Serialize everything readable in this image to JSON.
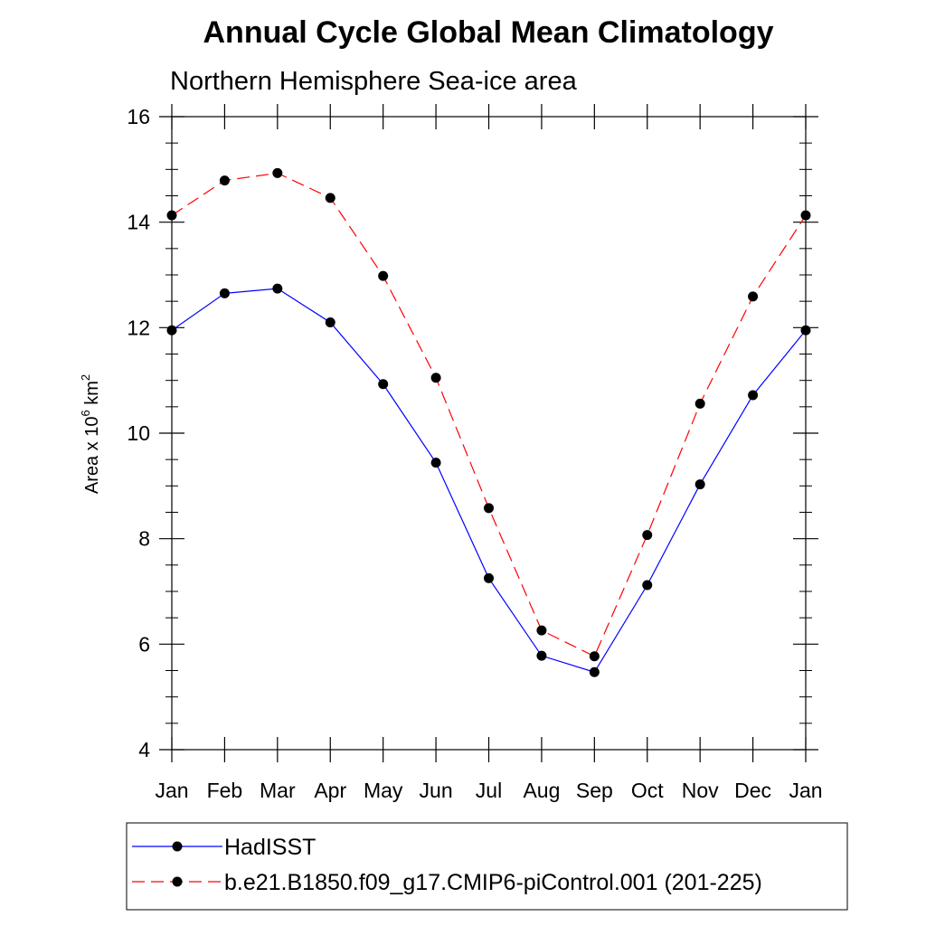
{
  "chart_data": {
    "type": "line",
    "title": "Annual Cycle Global Mean Climatology",
    "subtitle": "Northern Hemisphere Sea-ice area",
    "ylabel": {
      "prefix": "Area x 10",
      "superscript1": "6",
      "mid": " km",
      "superscript2": "2"
    },
    "categories": [
      "Jan",
      "Feb",
      "Mar",
      "Apr",
      "May",
      "Jun",
      "Jul",
      "Aug",
      "Sep",
      "Oct",
      "Nov",
      "Dec",
      "Jan"
    ],
    "ylim": [
      4,
      16
    ],
    "yticks": [
      "4",
      "6",
      "8",
      "10",
      "12",
      "14",
      "16"
    ],
    "grid": false,
    "legend_position": "bottom",
    "series": [
      {
        "name": "HadISST",
        "color": "#0000ff",
        "dash": "solid",
        "marker": "filled-circle",
        "values": [
          11.95,
          12.65,
          12.74,
          12.1,
          10.93,
          9.44,
          7.25,
          5.78,
          5.47,
          7.12,
          9.03,
          10.72,
          11.95
        ]
      },
      {
        "name": "b.e21.B1850.f09_g17.CMIP6-piControl.001 (201-225)",
        "color": "#ff0000",
        "dash": "dashed",
        "marker": "filled-circle",
        "values": [
          14.13,
          14.79,
          14.93,
          14.46,
          12.98,
          11.05,
          8.58,
          6.26,
          5.77,
          8.07,
          10.56,
          12.59,
          14.13
        ]
      }
    ]
  }
}
